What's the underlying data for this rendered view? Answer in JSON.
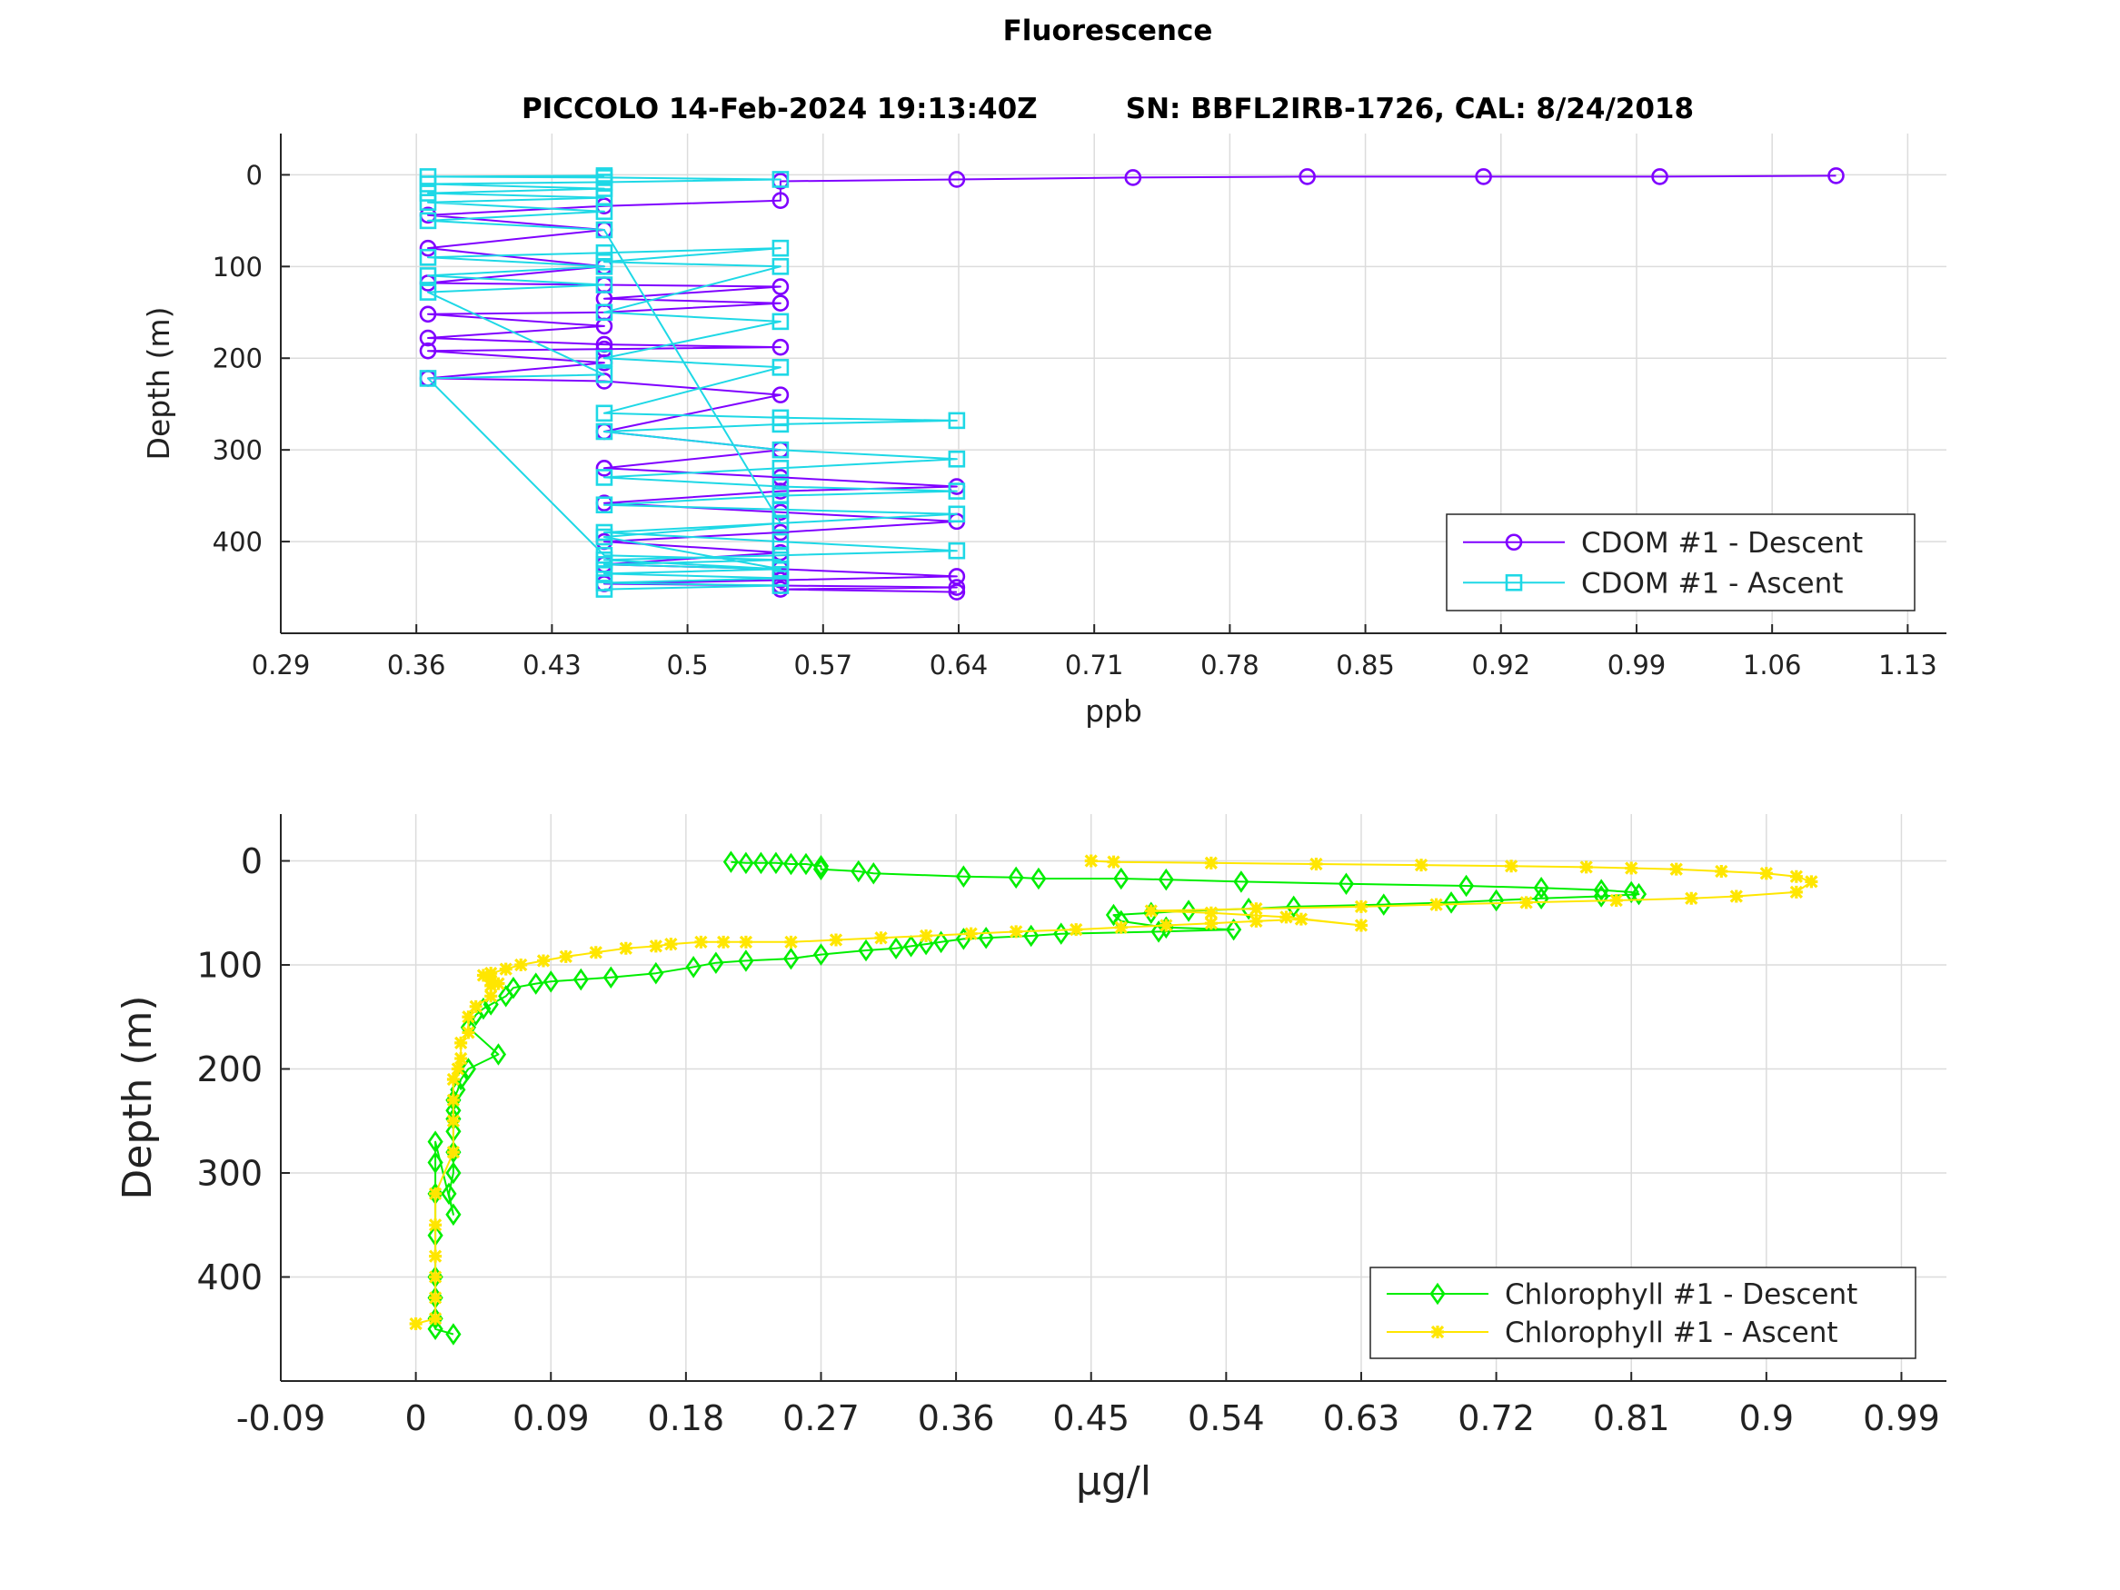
{
  "figure": {
    "title": "Fluorescence",
    "subtitle": "PICCOLO 14-Feb-2024 19:13:40Z         SN: BBFL2IRB-1726, CAL: 8/24/2018"
  },
  "colors": {
    "cdom_descent": "#7f00ff",
    "cdom_ascent": "#1ed8e6",
    "chl_descent": "#00ee00",
    "chl_ascent": "#ffe600",
    "grid": "#dcdcdc",
    "axis": "#262626"
  },
  "chart_data": [
    {
      "type": "line",
      "title": "",
      "xlabel": "ppb",
      "ylabel": "Depth (m)",
      "xlim": [
        0.29,
        1.15
      ],
      "ylim": [
        -45,
        500
      ],
      "y_reversed": true,
      "grid": true,
      "legend_position": "bottom-right",
      "xticks": [
        "0.29",
        "0.36",
        "0.43",
        "0.5",
        "0.57",
        "0.64",
        "0.71",
        "0.78",
        "0.85",
        "0.92",
        "0.99",
        "1.06",
        "1.13"
      ],
      "yticks": [
        "0",
        "100",
        "200",
        "300",
        "400"
      ],
      "series": [
        {
          "name": "CDOM #1 - Descent",
          "marker": "circle",
          "x": [
            1.093,
            1.002,
            0.911,
            0.82,
            0.73,
            0.639,
            0.548,
            0.548,
            0.457,
            0.366,
            0.457,
            0.366,
            0.457,
            0.366,
            0.457,
            0.548,
            0.457,
            0.548,
            0.457,
            0.366,
            0.457,
            0.366,
            0.457,
            0.548,
            0.457,
            0.366,
            0.457,
            0.366,
            0.457,
            0.548,
            0.457,
            0.548,
            0.457,
            0.548,
            0.639,
            0.548,
            0.457,
            0.548,
            0.639,
            0.548,
            0.457,
            0.548,
            0.457,
            0.548,
            0.639,
            0.548,
            0.457,
            0.548,
            0.639,
            0.548,
            0.639
          ],
          "y": [
            1,
            2,
            2,
            2,
            3,
            5,
            7,
            28,
            34,
            44,
            60,
            80,
            100,
            118,
            120,
            122,
            135,
            140,
            150,
            152,
            165,
            178,
            185,
            188,
            190,
            192,
            205,
            222,
            225,
            240,
            280,
            300,
            320,
            330,
            340,
            345,
            358,
            368,
            378,
            390,
            400,
            412,
            425,
            430,
            438,
            442,
            446,
            448,
            450,
            452,
            455
          ]
        },
        {
          "name": "CDOM #1 - Ascent",
          "marker": "square",
          "x": [
            0.457,
            0.548,
            0.457,
            0.548,
            0.457,
            0.548,
            0.457,
            0.548,
            0.457,
            0.366,
            0.457,
            0.366,
            0.457,
            0.366,
            0.457,
            0.366,
            0.457,
            0.548,
            0.457,
            0.548,
            0.457,
            0.548,
            0.457,
            0.548,
            0.457,
            0.548,
            0.639,
            0.548,
            0.457,
            0.548,
            0.639,
            0.548,
            0.457,
            0.548,
            0.639,
            0.548,
            0.457,
            0.548,
            0.639,
            0.548,
            0.457,
            0.548,
            0.639,
            0.548,
            0.457,
            0.548,
            0.457,
            0.548,
            0.457,
            0.366,
            0.457,
            0.366,
            0.457,
            0.366,
            0.457,
            0.366,
            0.457,
            0.548,
            0.457,
            0.366,
            0.457
          ],
          "y": [
            452,
            448,
            445,
            440,
            435,
            430,
            425,
            420,
            415,
            222,
            218,
            128,
            120,
            110,
            100,
            90,
            85,
            80,
            95,
            100,
            150,
            160,
            200,
            210,
            260,
            265,
            268,
            272,
            280,
            300,
            310,
            320,
            330,
            340,
            345,
            350,
            360,
            365,
            370,
            380,
            390,
            400,
            410,
            415,
            420,
            430,
            395,
            380,
            60,
            50,
            40,
            30,
            25,
            20,
            15,
            10,
            8,
            5,
            3,
            2,
            1
          ]
        }
      ]
    },
    {
      "type": "line",
      "title": "",
      "xlabel": "μg/l",
      "ylabel": "Depth (m)",
      "xlim": [
        -0.09,
        1.02
      ],
      "ylim": [
        -45,
        500
      ],
      "y_reversed": true,
      "grid": true,
      "legend_position": "bottom-right",
      "xticks": [
        "-0.09",
        "0",
        "0.09",
        "0.18",
        "0.27",
        "0.36",
        "0.45",
        "0.54",
        "0.63",
        "0.72",
        "0.81",
        "0.9",
        "0.99"
      ],
      "yticks": [
        "0",
        "100",
        "200",
        "300",
        "400"
      ],
      "series": [
        {
          "name": "Chlorophyll #1 - Descent",
          "marker": "diamond",
          "x": [
            0.21,
            0.22,
            0.23,
            0.24,
            0.25,
            0.26,
            0.27,
            0.27,
            0.295,
            0.305,
            0.365,
            0.4,
            0.415,
            0.47,
            0.5,
            0.55,
            0.62,
            0.7,
            0.75,
            0.79,
            0.81,
            0.815,
            0.79,
            0.75,
            0.72,
            0.69,
            0.645,
            0.585,
            0.555,
            0.515,
            0.49,
            0.465,
            0.47,
            0.5,
            0.545,
            0.495,
            0.43,
            0.41,
            0.38,
            0.365,
            0.35,
            0.34,
            0.33,
            0.32,
            0.3,
            0.27,
            0.25,
            0.22,
            0.2,
            0.185,
            0.16,
            0.13,
            0.11,
            0.09,
            0.08,
            0.065,
            0.06,
            0.05,
            0.045,
            0.04,
            0.035,
            0.055,
            0.035,
            0.03,
            0.028,
            0.025,
            0.025,
            0.025,
            0.025,
            0.025,
            0.025,
            0.022,
            0.025,
            0.013,
            0.013,
            0.013,
            0.013,
            0.013,
            0.013,
            0.013,
            0.013,
            0.025
          ],
          "y": [
            1,
            2,
            2,
            2,
            3,
            3,
            5,
            8,
            10,
            12,
            15,
            16,
            17,
            17,
            18,
            20,
            22,
            24,
            26,
            28,
            30,
            32,
            34,
            36,
            38,
            40,
            42,
            44,
            46,
            48,
            50,
            52,
            58,
            64,
            66,
            68,
            70,
            72,
            74,
            75,
            78,
            80,
            82,
            84,
            86,
            90,
            94,
            96,
            98,
            102,
            108,
            112,
            114,
            116,
            118,
            122,
            130,
            138,
            142,
            148,
            160,
            186,
            200,
            210,
            220,
            230,
            240,
            248,
            260,
            280,
            300,
            320,
            340,
            270,
            290,
            320,
            360,
            400,
            420,
            440,
            450,
            455
          ]
        },
        {
          "name": "Chlorophyll #1 - Ascent",
          "marker": "asterisk",
          "x": [
            0.0,
            0.013,
            0.013,
            0.013,
            0.013,
            0.013,
            0.013,
            0.025,
            0.025,
            0.025,
            0.025,
            0.028,
            0.03,
            0.03,
            0.035,
            0.035,
            0.04,
            0.05,
            0.05,
            0.055,
            0.05,
            0.045,
            0.05,
            0.06,
            0.07,
            0.085,
            0.1,
            0.12,
            0.14,
            0.16,
            0.17,
            0.19,
            0.205,
            0.22,
            0.25,
            0.28,
            0.31,
            0.34,
            0.37,
            0.4,
            0.44,
            0.47,
            0.5,
            0.53,
            0.56,
            0.59,
            0.63,
            0.58,
            0.53,
            0.49,
            0.56,
            0.63,
            0.68,
            0.74,
            0.8,
            0.85,
            0.88,
            0.92,
            0.93,
            0.92,
            0.9,
            0.87,
            0.84,
            0.81,
            0.78,
            0.73,
            0.67,
            0.6,
            0.53,
            0.465,
            0.45
          ],
          "y": [
            445,
            440,
            420,
            400,
            380,
            350,
            320,
            280,
            250,
            230,
            210,
            200,
            190,
            175,
            165,
            150,
            140,
            130,
            120,
            118,
            115,
            110,
            108,
            104,
            100,
            96,
            92,
            88,
            84,
            82,
            80,
            78,
            78,
            78,
            78,
            76,
            74,
            72,
            70,
            68,
            66,
            64,
            62,
            60,
            58,
            56,
            62,
            54,
            50,
            48,
            46,
            44,
            42,
            40,
            38,
            36,
            34,
            30,
            20,
            15,
            12,
            10,
            8,
            7,
            6,
            5,
            4,
            3,
            2,
            1,
            0
          ]
        }
      ]
    }
  ]
}
